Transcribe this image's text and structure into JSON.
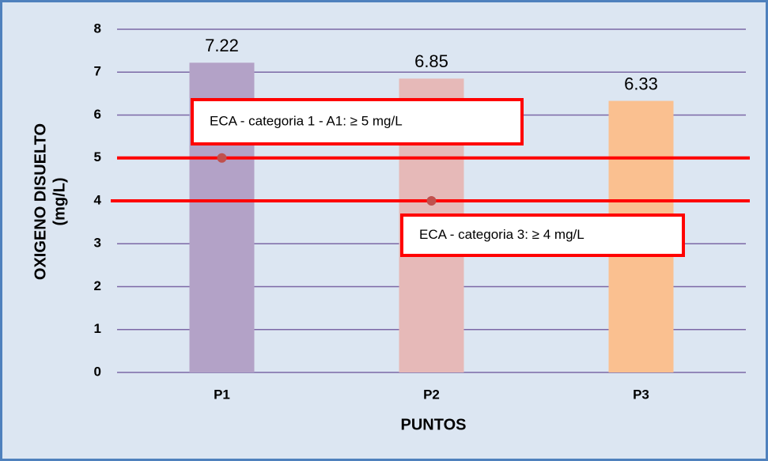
{
  "chart_data": {
    "type": "bar",
    "categories": [
      "P1",
      "P2",
      "P3"
    ],
    "values": [
      7.22,
      6.85,
      6.33
    ],
    "colors": [
      "#b3a2c7",
      "#e6b9b8",
      "#fac090"
    ],
    "ylim": [
      0,
      8
    ],
    "yticks": [
      0,
      1,
      2,
      3,
      4,
      5,
      6,
      7,
      8
    ],
    "grid": true,
    "xlabel": "PUNTOS",
    "ylabel": [
      "OXIGENO DISUELTO",
      "(mg/L)"
    ],
    "reference_lines": [
      {
        "value": 5,
        "label": "ECA -  categoria 1 - A1: ≥ 5 mg/L",
        "color": "#ff0000"
      },
      {
        "value": 4,
        "label": "ECA -  categoria 3: ≥ 4 mg/L",
        "color": "#ff0000"
      }
    ]
  }
}
